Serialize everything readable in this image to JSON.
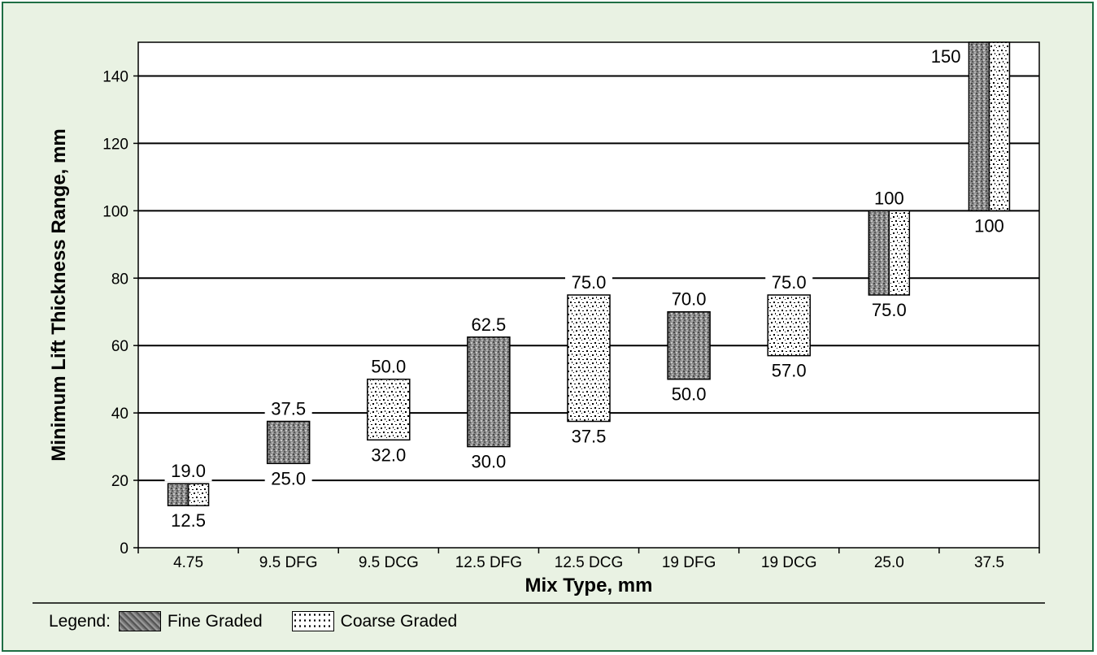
{
  "chart_data": {
    "type": "floating-bar",
    "xlabel": "Mix Type, mm",
    "ylabel": "Minimum Lift Thickness Range, mm",
    "ylim": [
      0,
      150
    ],
    "yticks": [
      0,
      20,
      40,
      60,
      80,
      100,
      120,
      140
    ],
    "grid": true,
    "categories": [
      "4.75",
      "9.5 DFG",
      "9.5 DCG",
      "12.5 DFG",
      "12.5 DCG",
      "19 DFG",
      "19 DCG",
      "25.0",
      "37.5"
    ],
    "ranges": [
      {
        "category": "4.75",
        "gradations": [
          "fine",
          "coarse"
        ],
        "low": 12.5,
        "high": 19.0,
        "low_label": "12.5",
        "high_label": "19.0"
      },
      {
        "category": "9.5 DFG",
        "gradations": [
          "fine"
        ],
        "low": 25.0,
        "high": 37.5,
        "low_label": "25.0",
        "high_label": "37.5"
      },
      {
        "category": "9.5 DCG",
        "gradations": [
          "coarse"
        ],
        "low": 32.0,
        "high": 50.0,
        "low_label": "32.0",
        "high_label": "50.0"
      },
      {
        "category": "12.5 DFG",
        "gradations": [
          "fine"
        ],
        "low": 30.0,
        "high": 62.5,
        "low_label": "30.0",
        "high_label": "62.5"
      },
      {
        "category": "12.5 DCG",
        "gradations": [
          "coarse"
        ],
        "low": 37.5,
        "high": 75.0,
        "low_label": "37.5",
        "high_label": "75.0"
      },
      {
        "category": "19 DFG",
        "gradations": [
          "fine"
        ],
        "low": 50.0,
        "high": 70.0,
        "low_label": "50.0",
        "high_label": "70.0"
      },
      {
        "category": "19 DCG",
        "gradations": [
          "coarse"
        ],
        "low": 57.0,
        "high": 75.0,
        "low_label": "57.0",
        "high_label": "75.0"
      },
      {
        "category": "25.0",
        "gradations": [
          "fine",
          "coarse"
        ],
        "low": 75.0,
        "high": 100,
        "low_label": "75.0",
        "high_label": "100"
      },
      {
        "category": "37.5",
        "gradations": [
          "fine",
          "coarse"
        ],
        "low": 100,
        "high": 150,
        "low_label": "100",
        "high_label": "150"
      }
    ],
    "legend": {
      "title": "Legend:",
      "items": [
        {
          "key": "fine",
          "label": "Fine Graded"
        },
        {
          "key": "coarse",
          "label": "Coarse Graded"
        }
      ]
    },
    "colors": {
      "frame_border": "#1e6e44",
      "background": "#e9f2e3",
      "fine_fill": "#8a8a8a",
      "coarse_fill": "#ffffff"
    }
  }
}
